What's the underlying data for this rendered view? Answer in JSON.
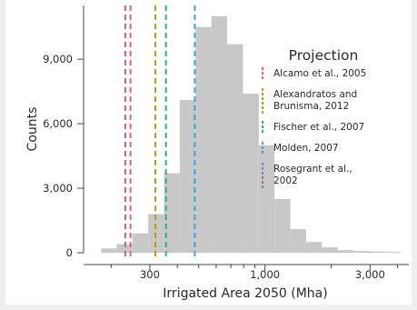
{
  "chart_data": {
    "type": "histogram",
    "xlabel": "Irrigated Area 2050 (Mha)",
    "ylabel": "Counts",
    "x_scale": "log",
    "xlim": [
      150,
      4500
    ],
    "ylim": [
      0,
      11500
    ],
    "x_ticks": [
      {
        "value": 300,
        "label": "300"
      },
      {
        "value": 1000,
        "label": "1,000"
      },
      {
        "value": 3000,
        "label": "3,000"
      }
    ],
    "y_ticks": [
      {
        "value": 0,
        "label": "0"
      },
      {
        "value": 3000,
        "label": "3,000"
      },
      {
        "value": 6000,
        "label": "6,000"
      },
      {
        "value": 9000,
        "label": "9,000"
      }
    ],
    "bin_edges": [
      180,
      212,
      250,
      295,
      348,
      410,
      484,
      571,
      673,
      794,
      937,
      1105,
      1303,
      1537,
      1813,
      2139,
      2523,
      2976,
      3511,
      4140
    ],
    "counts": [
      200,
      400,
      900,
      1800,
      3700,
      7100,
      10500,
      11000,
      9700,
      7400,
      5000,
      2500,
      1100,
      500,
      250,
      120,
      80,
      60,
      40
    ],
    "bar_color": "#c8c8c8",
    "legend": {
      "title": "Projection",
      "placement": "top-right"
    },
    "reference_lines": [
      {
        "name": "Alcamo et al., 2005",
        "value": 245,
        "color": "#e0607a"
      },
      {
        "name": "Alexandratos and Brunisma, 2012",
        "value": 318,
        "color": "#b59a12"
      },
      {
        "name": "Fischer et al., 2007",
        "value": 355,
        "color": "#2db37f"
      },
      {
        "name": "Molden, 2007",
        "value": 480,
        "color": "#3aa6d8"
      },
      {
        "name": "Rosegrant et al., 2002",
        "value": 232,
        "color": "#b063b3"
      }
    ]
  }
}
